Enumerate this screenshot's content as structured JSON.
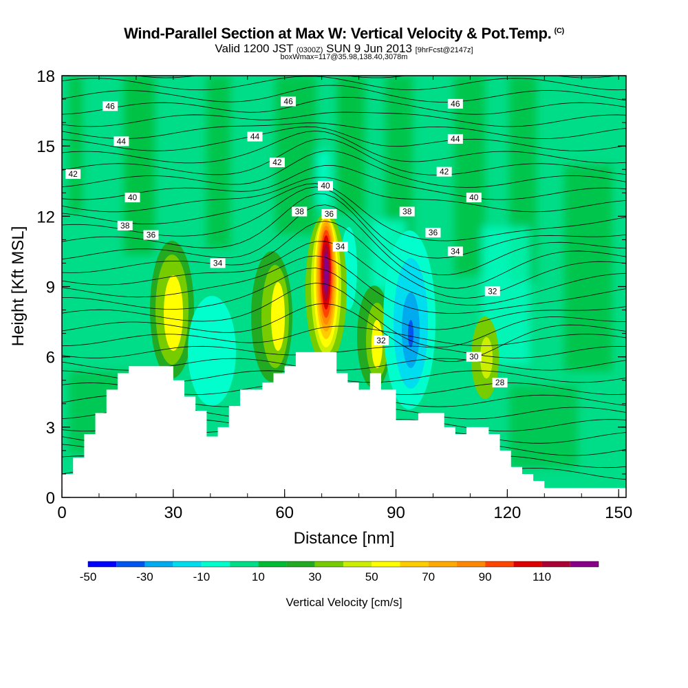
{
  "title": {
    "main": "Wind-Parallel Section at Max W: Vertical Velocity & Pot.Temp.",
    "copyright": "(C)",
    "valid_a": "Valid 1200 JST",
    "valid_b": "(0300Z)",
    "valid_c": "SUN 9 Jun 2013",
    "valid_d": "[9hrFcst@2147z]",
    "box": "boxWmax=117@35.98,138.40,3078m"
  },
  "chart_data": {
    "type": "heatmap",
    "xlabel": "Distance [nm]",
    "ylabel": "Height [Kft MSL]",
    "xlim": [
      0,
      152
    ],
    "ylim": [
      0,
      18
    ],
    "x_ticks": [
      "0",
      "30",
      "60",
      "90",
      "120",
      "150"
    ],
    "y_ticks": [
      "0",
      "3",
      "6",
      "9",
      "12",
      "15",
      "18"
    ],
    "colorbar": {
      "label": "Vertical Velocity [cm/s]",
      "tick_labels": [
        "-50",
        "-30",
        "-10",
        "10",
        "30",
        "50",
        "70",
        "90",
        "110"
      ],
      "levels": [
        -50,
        -40,
        -30,
        -20,
        -10,
        0,
        10,
        20,
        30,
        40,
        50,
        60,
        70,
        80,
        90,
        100,
        110,
        120
      ],
      "colors": [
        "#0000ff",
        "#0055ee",
        "#00aaee",
        "#00ddee",
        "#00ffcc",
        "#00dd88",
        "#00bb33",
        "#22aa22",
        "#77cc00",
        "#ccee00",
        "#ffff00",
        "#ffcc00",
        "#ffaa00",
        "#ff8800",
        "#ff4400",
        "#dd0000",
        "#aa0033",
        "#880088"
      ]
    },
    "velocity_features": [
      {
        "x": 71,
        "y": 9.5,
        "value": 110
      },
      {
        "x": 30,
        "y": 8,
        "value": 30
      },
      {
        "x": 58,
        "y": 8,
        "value": 30
      },
      {
        "x": 85,
        "y": 6.5,
        "value": 30
      },
      {
        "x": 116,
        "y": 5.5,
        "value": 30
      },
      {
        "x": 94,
        "y": 7,
        "value": -40
      },
      {
        "x": 42,
        "y": 6,
        "value": -10
      }
    ],
    "theta_labels": [
      {
        "text": "46",
        "x": 13,
        "y": 16.7
      },
      {
        "text": "46",
        "x": 61,
        "y": 16.9
      },
      {
        "text": "46",
        "x": 106,
        "y": 16.8
      },
      {
        "text": "44",
        "x": 16,
        "y": 15.2
      },
      {
        "text": "44",
        "x": 52,
        "y": 15.4
      },
      {
        "text": "44",
        "x": 106,
        "y": 15.3
      },
      {
        "text": "42",
        "x": 3,
        "y": 13.8
      },
      {
        "text": "42",
        "x": 58,
        "y": 14.3
      },
      {
        "text": "42",
        "x": 103,
        "y": 13.9
      },
      {
        "text": "40",
        "x": 19,
        "y": 12.8
      },
      {
        "text": "40",
        "x": 71,
        "y": 13.3
      },
      {
        "text": "40",
        "x": 111,
        "y": 12.8
      },
      {
        "text": "38",
        "x": 17,
        "y": 11.6
      },
      {
        "text": "38",
        "x": 64,
        "y": 12.2
      },
      {
        "text": "38",
        "x": 93,
        "y": 12.2
      },
      {
        "text": "36",
        "x": 24,
        "y": 11.2
      },
      {
        "text": "36",
        "x": 72,
        "y": 12.1
      },
      {
        "text": "36",
        "x": 100,
        "y": 11.3
      },
      {
        "text": "34",
        "x": 42,
        "y": 10.0
      },
      {
        "text": "34",
        "x": 75,
        "y": 10.7
      },
      {
        "text": "34",
        "x": 106,
        "y": 10.5
      },
      {
        "text": "32",
        "x": 86,
        "y": 6.7
      },
      {
        "text": "32",
        "x": 116,
        "y": 8.8
      },
      {
        "text": "30",
        "x": 111,
        "y": 6.0
      },
      {
        "text": "28",
        "x": 118,
        "y": 4.9
      }
    ],
    "terrain": [
      [
        0,
        1
      ],
      [
        1,
        1
      ],
      [
        3,
        1
      ],
      [
        3,
        1.7
      ],
      [
        6,
        1.7
      ],
      [
        6,
        2.7
      ],
      [
        9,
        2.7
      ],
      [
        9,
        3.6
      ],
      [
        12,
        3.6
      ],
      [
        12,
        4.6
      ],
      [
        15,
        4.6
      ],
      [
        15,
        5.3
      ],
      [
        18,
        5.3
      ],
      [
        18,
        5.6
      ],
      [
        21,
        5.6
      ],
      [
        25,
        5.6
      ],
      [
        28,
        5.6
      ],
      [
        30,
        5.6
      ],
      [
        30,
        5
      ],
      [
        33,
        5
      ],
      [
        33,
        4.3
      ],
      [
        36,
        4.3
      ],
      [
        36,
        3.7
      ],
      [
        39,
        3.7
      ],
      [
        39,
        2.6
      ],
      [
        42,
        2.6
      ],
      [
        42,
        3
      ],
      [
        45,
        3
      ],
      [
        45,
        3.9
      ],
      [
        48,
        3.9
      ],
      [
        48,
        4.6
      ],
      [
        51,
        4.6
      ],
      [
        51,
        4.6
      ],
      [
        54,
        4.6
      ],
      [
        54,
        4.9
      ],
      [
        57,
        4.9
      ],
      [
        57,
        5.3
      ],
      [
        60,
        5.3
      ],
      [
        60,
        5.6
      ],
      [
        63,
        5.6
      ],
      [
        63,
        6.2
      ],
      [
        66,
        6.2
      ],
      [
        69,
        6.2
      ],
      [
        72,
        6.2
      ],
      [
        74,
        6.2
      ],
      [
        74,
        5.3
      ],
      [
        77,
        5.3
      ],
      [
        77,
        4.9
      ],
      [
        80,
        4.9
      ],
      [
        80,
        4.6
      ],
      [
        83,
        4.6
      ],
      [
        83,
        5.3
      ],
      [
        86,
        5.3
      ],
      [
        86,
        4.6
      ],
      [
        90,
        4.6
      ],
      [
        90,
        3.3
      ],
      [
        93,
        3.3
      ],
      [
        96,
        3.3
      ],
      [
        96,
        3.6
      ],
      [
        100,
        3.6
      ],
      [
        103,
        3.6
      ],
      [
        103,
        3
      ],
      [
        106,
        3
      ],
      [
        106,
        2.7
      ],
      [
        109,
        2.7
      ],
      [
        109,
        3
      ],
      [
        115,
        3
      ],
      [
        115,
        2.7
      ],
      [
        118,
        2.7
      ],
      [
        118,
        2
      ],
      [
        121,
        2
      ],
      [
        121,
        1.3
      ],
      [
        124,
        1.3
      ],
      [
        124,
        1
      ],
      [
        127,
        1
      ],
      [
        127,
        0.7
      ],
      [
        130,
        0.7
      ],
      [
        130,
        0.4
      ],
      [
        133,
        0.4
      ],
      [
        152,
        0.4
      ]
    ]
  }
}
